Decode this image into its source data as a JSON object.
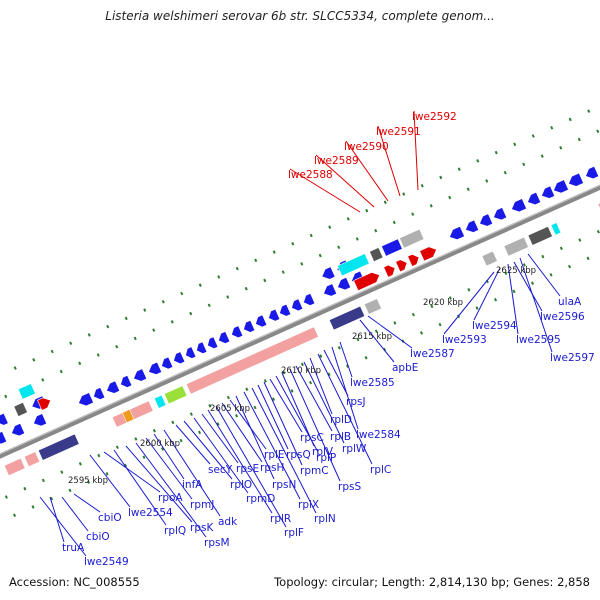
{
  "title": "Listeria welshimeri serovar 6b str. SLCC5334, complete genom...",
  "accession": "Accession: NC_008555",
  "topology": "Topology: circular; Length: 2,814,130 bp; Genes: 2,858",
  "colors": {
    "axis": "#888888",
    "tick": "#2e7d32",
    "blue_gene": "#1a1ae6",
    "red_gene": "#e00000",
    "pink_gene": "#f2a0a0",
    "navy_gene": "#3a3a8a",
    "gray_gene": "#b0b0b0",
    "cyan_gene": "#00e5ee",
    "dark_gene": "#555555",
    "green_gene": "#9be03a",
    "orange_gene": "#f09a20",
    "label_blue": "#1a1ad0",
    "label_red": "#dd0000"
  },
  "kbp_labels": [
    {
      "text": "2595 kbp",
      "kbp": 2595
    },
    {
      "text": "2600 kbp",
      "kbp": 2600
    },
    {
      "text": "2605 kbp",
      "kbp": 2605
    },
    {
      "text": "2610 kbp",
      "kbp": 2610
    },
    {
      "text": "2615 kbp",
      "kbp": 2615
    },
    {
      "text": "2620 kbp",
      "kbp": 2620
    },
    {
      "text": "2625 kbp",
      "kbp": 2625
    }
  ],
  "gene_labels": [
    {
      "text": "lwe2549",
      "color": "blue"
    },
    {
      "text": "truA",
      "color": "blue"
    },
    {
      "text": "cbiO",
      "color": "blue"
    },
    {
      "text": "cbiO",
      "color": "blue"
    },
    {
      "text": "lwe2554",
      "color": "blue"
    },
    {
      "text": "rpoA",
      "color": "blue"
    },
    {
      "text": "rplQ",
      "color": "blue"
    },
    {
      "text": "rpsK",
      "color": "blue"
    },
    {
      "text": "rpsM",
      "color": "blue"
    },
    {
      "text": "rpmJ",
      "color": "blue"
    },
    {
      "text": "infA",
      "color": "blue"
    },
    {
      "text": "adk",
      "color": "blue"
    },
    {
      "text": "secY",
      "color": "blue"
    },
    {
      "text": "rplO",
      "color": "blue"
    },
    {
      "text": "rpmD",
      "color": "blue"
    },
    {
      "text": "rpsE",
      "color": "blue"
    },
    {
      "text": "rplR",
      "color": "blue"
    },
    {
      "text": "rplF",
      "color": "blue"
    },
    {
      "text": "rpsH",
      "color": "blue"
    },
    {
      "text": "rplE",
      "color": "blue"
    },
    {
      "text": "rpsN",
      "color": "blue"
    },
    {
      "text": "rplX",
      "color": "blue"
    },
    {
      "text": "rplN",
      "color": "blue"
    },
    {
      "text": "rpsQ",
      "color": "blue"
    },
    {
      "text": "rpmC",
      "color": "blue"
    },
    {
      "text": "rpsC",
      "color": "blue"
    },
    {
      "text": "rplP",
      "color": "blue"
    },
    {
      "text": "rplV",
      "color": "blue"
    },
    {
      "text": "rpsS",
      "color": "blue"
    },
    {
      "text": "rplB",
      "color": "blue"
    },
    {
      "text": "rplW",
      "color": "blue"
    },
    {
      "text": "rplD",
      "color": "blue"
    },
    {
      "text": "rplC",
      "color": "blue"
    },
    {
      "text": "rpsJ",
      "color": "blue"
    },
    {
      "text": "lwe2584",
      "color": "blue"
    },
    {
      "text": "lwe2585",
      "color": "blue"
    },
    {
      "text": "apbE",
      "color": "blue"
    },
    {
      "text": "lwe2587",
      "color": "blue"
    },
    {
      "text": "lwe2588",
      "color": "red"
    },
    {
      "text": "lwe2589",
      "color": "red"
    },
    {
      "text": "lwe2590",
      "color": "red"
    },
    {
      "text": "lwe2591",
      "color": "red"
    },
    {
      "text": "lwe2592",
      "color": "red"
    },
    {
      "text": "lwe2593",
      "color": "blue"
    },
    {
      "text": "lwe2594",
      "color": "blue"
    },
    {
      "text": "lwe2595",
      "color": "blue"
    },
    {
      "text": "lwe2596",
      "color": "blue"
    },
    {
      "text": "lwe2597",
      "color": "blue"
    },
    {
      "text": "ulaA",
      "color": "blue"
    }
  ]
}
